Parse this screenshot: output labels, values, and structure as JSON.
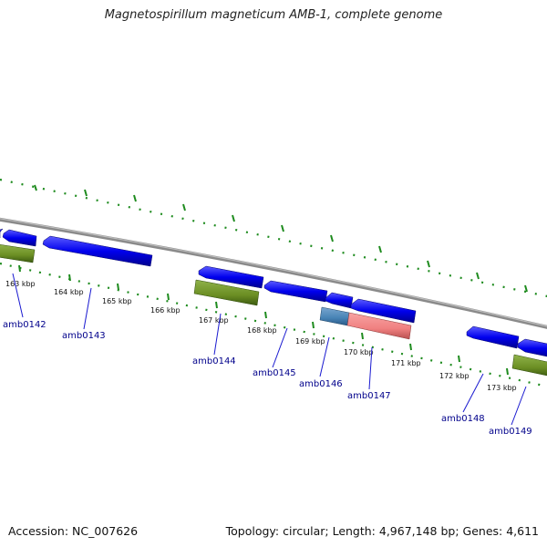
{
  "title": "Magnetospirillum magneticum AMB-1, complete genome",
  "footer": {
    "accession_label": "Accession:",
    "accession": "NC_007626",
    "topology_text": "Topology: circular; Length: 4,967,148 bp; Genes: 4,611"
  },
  "colors": {
    "cds": "#0000ee",
    "gene_feature": "#6b8e23",
    "hit_blue": "#4682b4",
    "hit_pink": "#f08080",
    "backbone": "#888888",
    "ticks": "#1e8b1e",
    "label_text": "#00008b"
  },
  "ruler": {
    "tick_labels": [
      "163 kbp",
      "164 kbp",
      "165 kbp",
      "166 kbp",
      "167 kbp",
      "168 kbp",
      "169 kbp",
      "170 kbp",
      "171 kbp",
      "172 kbp",
      "173 kbp"
    ]
  },
  "genes": [
    {
      "label": "amb0142"
    },
    {
      "label": "amb0143"
    },
    {
      "label": "amb0144"
    },
    {
      "label": "amb0145"
    },
    {
      "label": "amb0146"
    },
    {
      "label": "amb0147"
    },
    {
      "label": "amb0148"
    },
    {
      "label": "amb0149"
    }
  ]
}
